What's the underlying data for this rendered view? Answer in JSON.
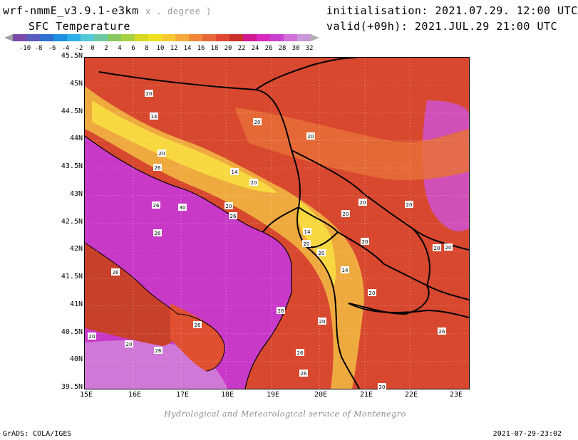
{
  "header": {
    "model": "wrf-nmmE_v3.9.1-e3km",
    "unit_note": "x . degree )",
    "field": "SFC Temperature",
    "init": "initialisation: 2021.07.29. 12:00 UTC",
    "valid": "valid(+09h): 2021.JUL.29 21:00 UTC"
  },
  "colorbar": {
    "labels": [
      "-10",
      "-8",
      "-6",
      "-4",
      "-2",
      "0",
      "2",
      "4",
      "6",
      "8",
      "10",
      "12",
      "14",
      "16",
      "18",
      "20",
      "22",
      "24",
      "26",
      "28",
      "30",
      "32"
    ],
    "colors": [
      "#7a4aa8",
      "#5a5cc0",
      "#2e6fd0",
      "#1f8fe0",
      "#2cb0e8",
      "#52c8d8",
      "#6cc8a0",
      "#88c860",
      "#a8d040",
      "#d8d820",
      "#f0e020",
      "#f8c830",
      "#f8a838",
      "#f08838",
      "#e86838",
      "#e04830",
      "#c83028",
      "#d01890",
      "#d828c0",
      "#c840d0",
      "#d070d8",
      "#c898d8"
    ]
  },
  "axes": {
    "x_ticks": [
      "15E",
      "16E",
      "17E",
      "18E",
      "19E",
      "20E",
      "21E",
      "22E",
      "23E"
    ],
    "y_ticks": [
      "45.5N",
      "45N",
      "44.5N",
      "44N",
      "43.5N",
      "43N",
      "42.5N",
      "42N",
      "41.5N",
      "41N",
      "40.5N",
      "40N",
      "39.5N"
    ]
  },
  "contour_labels": [
    {
      "t": "20"
    },
    {
      "t": "14"
    },
    {
      "t": "20"
    },
    {
      "t": "20"
    },
    {
      "t": "20"
    },
    {
      "t": "14"
    },
    {
      "t": "26"
    },
    {
      "t": "26"
    },
    {
      "t": "30"
    },
    {
      "t": "20"
    },
    {
      "t": "26"
    },
    {
      "t": "20"
    },
    {
      "t": "14"
    },
    {
      "t": "20"
    },
    {
      "t": "20"
    },
    {
      "t": "20"
    },
    {
      "t": "20"
    },
    {
      "t": "20"
    },
    {
      "t": "14"
    },
    {
      "t": "20"
    },
    {
      "t": "20"
    },
    {
      "t": "20"
    },
    {
      "t": "26"
    },
    {
      "t": "26"
    },
    {
      "t": "20"
    },
    {
      "t": "26"
    },
    {
      "t": "20"
    },
    {
      "t": "26"
    },
    {
      "t": "26"
    },
    {
      "t": "26"
    },
    {
      "t": "20"
    },
    {
      "t": "26"
    },
    {
      "t": "26"
    },
    {
      "t": "20"
    },
    {
      "t": "20"
    }
  ],
  "credit": "Hydrological and Meteorological service of Montenegro",
  "footer": {
    "left": "GrADS: COLA/IGES",
    "right": "2021-07-29-23:02"
  }
}
